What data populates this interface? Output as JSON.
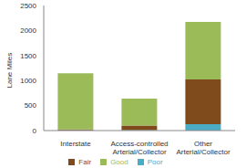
{
  "chart_data": {
    "type": "bar",
    "stacked": true,
    "categories": [
      "Interstate",
      "Access-controlled Arterial/Collector",
      "Other Arterial/Collector"
    ],
    "series": [
      {
        "name": "Poor",
        "color": "#4bacc6",
        "values": [
          5,
          10,
          130
        ]
      },
      {
        "name": "Fair",
        "color": "#7f4a1c",
        "values": [
          20,
          90,
          890
        ]
      },
      {
        "name": "Good",
        "color": "#9bbb59",
        "values": [
          1120,
          540,
          1150
        ]
      }
    ],
    "y_label": "Lane Miles",
    "ylim": [
      0,
      2500
    ],
    "yticks": [
      0,
      500,
      1000,
      1500,
      2000,
      2500
    ],
    "grid": false,
    "legend": "bottom"
  }
}
